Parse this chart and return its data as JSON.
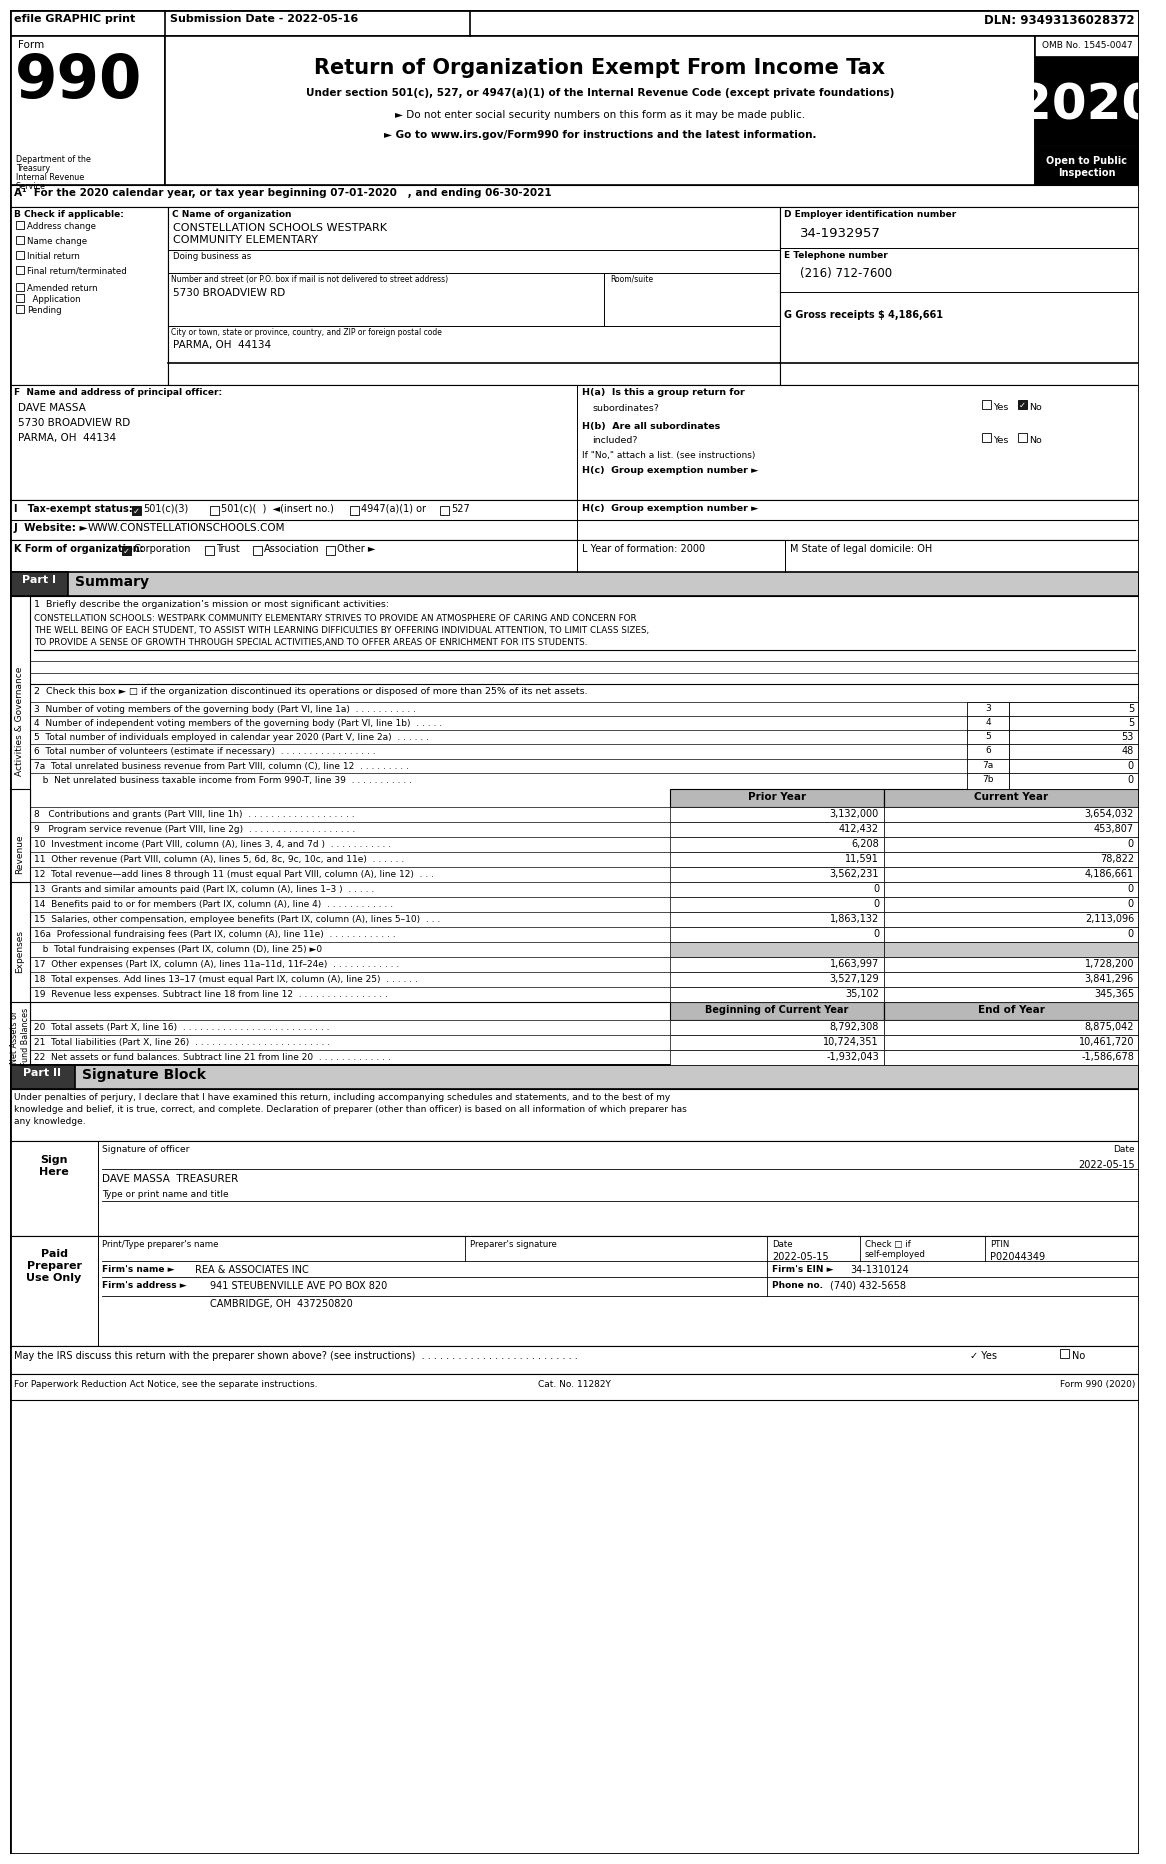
{
  "dln": "DLN: 93493136028372",
  "submission": "Submission Date - 2022-05-16",
  "efile": "efile GRAPHIC print",
  "form_label": "Form",
  "form_number": "990",
  "title": "Return of Organization Exempt From Income Tax",
  "sub1": "Under section 501(c), 527, or 4947(a)(1) of the Internal Revenue Code (except private foundations)",
  "sub2": "► Do not enter social security numbers on this form as it may be made public.",
  "sub3": "► Go to www.irs.gov/Form990 for instructions and the latest information.",
  "dept": "Department of the\nTreasury\nInternal Revenue\nService",
  "omb": "OMB No. 1545-0047",
  "year": "2020",
  "open_public": "Open to Public\nInspection",
  "line_A": "A¹  For the 2020 calendar year, or tax year beginning 07-01-2020   , and ending 06-30-2021",
  "org_name_lbl": "C Name of organization",
  "org_name": "CONSTELLATION SCHOOLS WESTPARK\nCOMMUNITY ELEMENTARY",
  "dba_lbl": "Doing business as",
  "street_lbl": "Number and street (or P.O. box if mail is not delivered to street address)",
  "room_lbl": "Room/suite",
  "street": "5730 BROADVIEW RD",
  "city_lbl": "City or town, state or province, country, and ZIP or foreign postal code",
  "city": "PARMA, OH  44134",
  "ein_lbl": "D Employer identification number",
  "ein": "34-1932957",
  "tel_lbl": "E Telephone number",
  "tel": "(216) 712-7600",
  "gross_lbl": "G Gross receipts $ 4,186,661",
  "officer_lbl": "F  Name and address of principal officer:",
  "officer_name": "DAVE MASSA",
  "officer_addr1": "5730 BROADVIEW RD",
  "officer_addr2": "PARMA, OH  44134",
  "ha_lbl": "H(a)  Is this a group return for",
  "ha_sub": "subordinates?",
  "hb_lbl": "H(b)  Are all subordinates\n         included?",
  "hb_note": "If \"No,\" attach a list. (see instructions)",
  "hc_lbl": "H(c)  Group exemption number ►",
  "tax_lbl": "I   Tax-exempt status:",
  "website_lbl": "J  Website: ►",
  "website": "WWW.CONSTELLATIONSCHOOLS.COM",
  "k_lbl": "K Form of organization:",
  "l_lbl": "L Year of formation: 2000",
  "m_lbl": "M State of legal domicile: OH",
  "p1_lbl": "Part I",
  "p1_title": "Summary",
  "mission_lbl": "1  Briefly describe the organization’s mission or most significant activities:",
  "mission1": "CONSTELLATION SCHOOLS: WESTPARK COMMUNITY ELEMENTARY STRIVES TO PROVIDE AN ATMOSPHERE OF CARING AND CONCERN FOR",
  "mission2": "THE WELL BEING OF EACH STUDENT, TO ASSIST WITH LEARNING DIFFICULTIES BY OFFERING INDIVIDUAL ATTENTION, TO LIMIT CLASS SIZES,",
  "mission3": "TO PROVIDE A SENSE OF GROWTH THROUGH SPECIAL ACTIVITIES,AND TO OFFER AREAS OF ENRICHMENT FOR ITS STUDENTS.",
  "ag_lbl": "Activities & Governance",
  "line2": "2  Check this box ► □ if the organization discontinued its operations or disposed of more than 25% of its net assets.",
  "line3_lbl": "3  Number of voting members of the governing body (Part VI, line 1a)  . . . . . . . . . . .",
  "line4_lbl": "4  Number of independent voting members of the governing body (Part VI, line 1b)  . . . . .",
  "line5_lbl": "5  Total number of individuals employed in calendar year 2020 (Part V, line 2a)  . . . . . .",
  "line6_lbl": "6  Total number of volunteers (estimate if necessary)  . . . . . . . . . . . . . . . . .",
  "line7a_lbl": "7a  Total unrelated business revenue from Part VIII, column (C), line 12  . . . . . . . . .",
  "line7b_lbl": "   b  Net unrelated business taxable income from Form 990-T, line 39  . . . . . . . . . . .",
  "prior_yr": "Prior Year",
  "curr_yr": "Current Year",
  "rev_lbl": "Revenue",
  "line8_lbl": "8   Contributions and grants (Part VIII, line 1h)  . . . . . . . . . . . . . . . . . . .",
  "line9_lbl": "9   Program service revenue (Part VIII, line 2g)  . . . . . . . . . . . . . . . . . . .",
  "line10_lbl": "10  Investment income (Part VIII, column (A), lines 3, 4, and 7d )  . . . . . . . . . . .",
  "line11_lbl": "11  Other revenue (Part VIII, column (A), lines 5, 6d, 8c, 9c, 10c, and 11e)  . . . . . .",
  "line12_lbl": "12  Total revenue—add lines 8 through 11 (must equal Part VIII, column (A), line 12)  . . .",
  "exp_lbl": "Expenses",
  "line13_lbl": "13  Grants and similar amounts paid (Part IX, column (A), lines 1–3 )  . . . . .",
  "line14_lbl": "14  Benefits paid to or for members (Part IX, column (A), line 4)  . . . . . . . . . . . .",
  "line15_lbl": "15  Salaries, other compensation, employee benefits (Part IX, column (A), lines 5–10)  . . .",
  "line16a_lbl": "16a  Professional fundraising fees (Part IX, column (A), line 11e)  . . . . . . . . . . . .",
  "line16b_lbl": "   b  Total fundraising expenses (Part IX, column (D), line 25) ►0",
  "line17_lbl": "17  Other expenses (Part IX, column (A), lines 11a–11d, 11f–24e)  . . . . . . . . . . . .",
  "line18_lbl": "18  Total expenses. Add lines 13–17 (must equal Part IX, column (A), line 25)  . . . . . .",
  "line19_lbl": "19  Revenue less expenses. Subtract line 18 from line 12  . . . . . . . . . . . . . . . .",
  "na_lbl": "Net Assets or\nFund Balances",
  "beg_yr": "Beginning of Current Year",
  "end_yr": "End of Year",
  "line20_lbl": "20  Total assets (Part X, line 16)  . . . . . . . . . . . . . . . . . . . . . . . . . .",
  "line21_lbl": "21  Total liabilities (Part X, line 26)  . . . . . . . . . . . . . . . . . . . . . . . .",
  "line22_lbl": "22  Net assets or fund balances. Subtract line 21 from line 20  . . . . . . . . . . . . .",
  "p2_lbl": "Part II",
  "p2_title": "Signature Block",
  "sig_text1": "Under penalties of perjury, I declare that I have examined this return, including accompanying schedules and statements, and to the best of my",
  "sig_text2": "knowledge and belief, it is true, correct, and complete. Declaration of preparer (other than officer) is based on all information of which preparer has",
  "sig_text3": "any knowledge.",
  "sign_here": "Sign\nHere",
  "sig_of": "Signature of officer",
  "date_lbl": "Date",
  "sig_date": "2022-05-15",
  "sig_name": "DAVE MASSA  TREASURER",
  "name_title_lbl": "Type or print name and title",
  "paid_lbl": "Paid\nPreparer\nUse Only",
  "prep_name_lbl": "Print/Type preparer's name",
  "prep_sig_lbl": "Preparer's signature",
  "prep_date_lbl": "Date",
  "prep_check_lbl": "Check □ if\nself-employed",
  "ptin_lbl": "PTIN",
  "prep_date": "2022-05-15",
  "ptin": "P02044349",
  "firm_name_lbl": "Firm's name ►",
  "firm_name": "REA & ASSOCIATES INC",
  "firm_ein_lbl": "Firm's EIN ►",
  "firm_ein": "34-1310124",
  "firm_addr_lbl": "Firm's address ►",
  "firm_addr": "941 STEUBENVILLE AVE PO BOX 820",
  "firm_city": "CAMBRIDGE, OH  437250820",
  "phone_lbl": "Phone no.",
  "phone": "(740) 432-5658",
  "discuss": "May the IRS discuss this return with the preparer shown above? (see instructions)  . . . . . . . . . . . . . . . . . . . . . . . . . .",
  "cat_no": "Cat. No. 11282Y",
  "footer": "Form 990 (2020)",
  "paperwork": "For Paperwork Reduction Act Notice, see the separate instructions.",
  "vals": {
    "l3": "5",
    "l4": "5",
    "l5": "53",
    "l6": "48",
    "l7a": "0",
    "l7b": "0",
    "l8p": "3,132,000",
    "l8c": "3,654,032",
    "l9p": "412,432",
    "l9c": "453,807",
    "l10p": "6,208",
    "l10c": "0",
    "l11p": "11,591",
    "l11c": "78,822",
    "l12p": "3,562,231",
    "l12c": "4,186,661",
    "l13p": "0",
    "l13c": "0",
    "l14p": "0",
    "l14c": "0",
    "l15p": "1,863,132",
    "l15c": "2,113,096",
    "l16ap": "0",
    "l16ac": "0",
    "l17p": "1,663,997",
    "l17c": "1,728,200",
    "l18p": "3,527,129",
    "l18c": "3,841,296",
    "l19p": "35,102",
    "l19c": "345,365",
    "l20b": "8,792,308",
    "l20e": "8,875,042",
    "l21b": "10,724,351",
    "l21e": "10,461,720",
    "l22b": "-1,932,043",
    "l22e": "-1,586,678"
  }
}
